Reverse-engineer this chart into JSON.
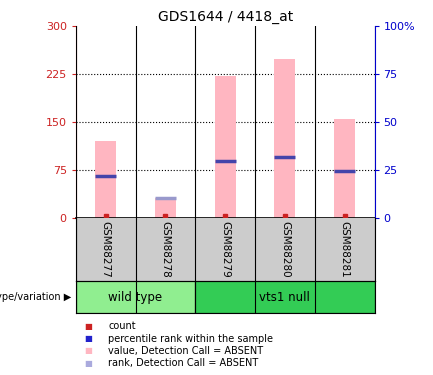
{
  "title": "GDS1644 / 4418_at",
  "samples": [
    "GSM88277",
    "GSM88278",
    "GSM88279",
    "GSM88280",
    "GSM88281"
  ],
  "pink_bar_values": [
    120,
    30,
    222,
    248,
    155
  ],
  "blue_marker_values": [
    65,
    30,
    88,
    95,
    73
  ],
  "is_absent": [
    false,
    true,
    false,
    false,
    false
  ],
  "left_ylim": [
    0,
    300
  ],
  "right_ylim": [
    0,
    100
  ],
  "left_yticks": [
    0,
    75,
    150,
    225,
    300
  ],
  "right_yticks": [
    0,
    25,
    50,
    75,
    100
  ],
  "left_ytick_labels": [
    "0",
    "75",
    "150",
    "225",
    "300"
  ],
  "right_ytick_labels": [
    "0",
    "25",
    "50",
    "75",
    "100%"
  ],
  "dotted_lines": [
    75,
    150,
    225
  ],
  "groups": [
    {
      "label": "wild type",
      "samples": [
        0,
        1
      ],
      "color": "#90EE90"
    },
    {
      "label": "vts1 null",
      "samples": [
        2,
        3,
        4
      ],
      "color": "#33CC55"
    }
  ],
  "genotype_label": "genotype/variation",
  "legend_items": [
    {
      "color": "#CC2222",
      "label": "count"
    },
    {
      "color": "#2222CC",
      "label": "percentile rank within the sample"
    },
    {
      "color": "#FFB6C1",
      "label": "value, Detection Call = ABSENT"
    },
    {
      "color": "#AAAADD",
      "label": "rank, Detection Call = ABSENT"
    }
  ],
  "bar_color": "#FFB6C1",
  "blue_marker_color_present": "#4444AA",
  "blue_marker_color_absent": "#9999CC",
  "red_dot_color": "#CC2222",
  "bar_width": 0.35,
  "bg_color": "#FFFFFF",
  "plot_bg": "#FFFFFF",
  "label_bg": "#CCCCCC",
  "left_tick_color": "#CC2222",
  "right_tick_color": "#0000CC"
}
